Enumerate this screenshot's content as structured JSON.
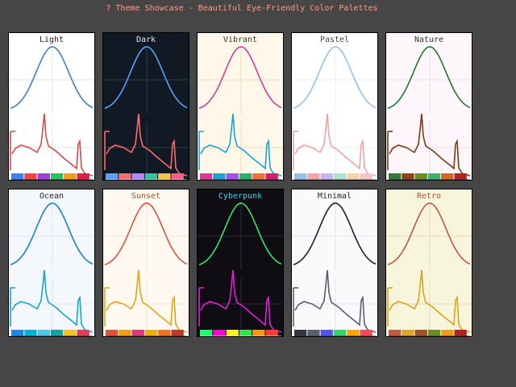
{
  "window": {
    "title": "? Theme Showcase - Beautiful Eye-Friendly Color Palettes"
  },
  "themes": [
    {
      "name": "Light",
      "bg": "#ffffff",
      "grid": "#e6e6e6",
      "title_color": "#222222",
      "curve": "#3d7fd3",
      "wave": "#d64a4a",
      "axis": "#333333",
      "swatches": [
        "#3b82f6",
        "#ef4444",
        "#a23fe0",
        "#22c55e",
        "#f59e0b",
        "#e11d48"
      ]
    },
    {
      "name": "Dark",
      "bg": "#111a24",
      "grid": "#2e3a47",
      "title_color": "#e6e6e6",
      "curve": "#5aa0ff",
      "wave": "#ff6b6b",
      "axis": "#cfd5dc",
      "swatches": [
        "#5aa0ff",
        "#ff6b6b",
        "#b983ff",
        "#2ec4a5",
        "#f5c542",
        "#ff5e8a"
      ]
    },
    {
      "name": "Vibrant",
      "bg": "#fff8ea",
      "grid": "#ecdcbf",
      "title_color": "#333333",
      "curve": "#e0379a",
      "wave": "#1aa3d8",
      "axis": "#333333",
      "swatches": [
        "#e0379a",
        "#1aa3d8",
        "#a44ff0",
        "#27b36b",
        "#f26f3a",
        "#d91c6c"
      ]
    },
    {
      "name": "Pastel",
      "bg": "#ffffff",
      "grid": "#ececec",
      "title_color": "#444444",
      "curve": "#92c1f2",
      "wave": "#f0a3a3",
      "axis": "#666666",
      "swatches": [
        "#92c1f2",
        "#f5a3a3",
        "#c7b2f2",
        "#a8e6cf",
        "#ffd3a5",
        "#f7c6c7"
      ]
    },
    {
      "name": "Nature",
      "bg": "#fdf7fb",
      "grid": "#e9dfe6",
      "title_color": "#333333",
      "curve": "#1f7a2a",
      "wave": "#7b3b12",
      "axis": "#333333",
      "swatches": [
        "#2e7d32",
        "#8b4513",
        "#6b8e23",
        "#3cb371",
        "#d2691e",
        "#b22222"
      ]
    },
    {
      "name": "Ocean",
      "bg": "#f4f8fd",
      "grid": "#dde6f0",
      "title_color": "#222222",
      "curve": "#1c7fd0",
      "wave": "#12a6d0",
      "axis": "#333333",
      "swatches": [
        "#1e88e5",
        "#00b4d8",
        "#48cae4",
        "#0fa3a3",
        "#f5c518",
        "#e53958"
      ]
    },
    {
      "name": "Sunset",
      "bg": "#fff9f2",
      "grid": "#efe3d6",
      "title_color": "#a94d14",
      "curve": "#e0533a",
      "wave": "#e4a515",
      "axis": "#333333",
      "swatches": [
        "#e0533a",
        "#f59e0b",
        "#e4357a",
        "#e8b10c",
        "#f2711c",
        "#c0392b"
      ]
    },
    {
      "name": "Cyberpunk",
      "bg": "#0f0d12",
      "grid": "#2f2b36",
      "title_color": "#25d9ff",
      "curve": "#2ee86c",
      "wave": "#e020d8",
      "axis": "#e6e6e6",
      "swatches": [
        "#1aff6b",
        "#ff00d4",
        "#fff21a",
        "#2ee64a",
        "#ff9a00",
        "#ff3d2e"
      ]
    },
    {
      "name": "Minimal",
      "bg": "#fcf9fc",
      "grid": "#e6e2e6",
      "title_color": "#222222",
      "curve": "#1f1f26",
      "wave": "#5b5e6b",
      "axis": "#333333",
      "swatches": [
        "#2f3542",
        "#57606f",
        "#5352ed",
        "#2ed573",
        "#ffa502",
        "#ff4757"
      ]
    },
    {
      "name": "Retro",
      "bg": "#f8f5dd",
      "grid": "#e4dcbc",
      "title_color": "#c1492e",
      "curve": "#c25548",
      "wave": "#d9a31b",
      "axis": "#333333",
      "swatches": [
        "#c65a3e",
        "#e0a62a",
        "#a0522d",
        "#6b8e23",
        "#f39c12",
        "#b22222"
      ]
    }
  ]
}
